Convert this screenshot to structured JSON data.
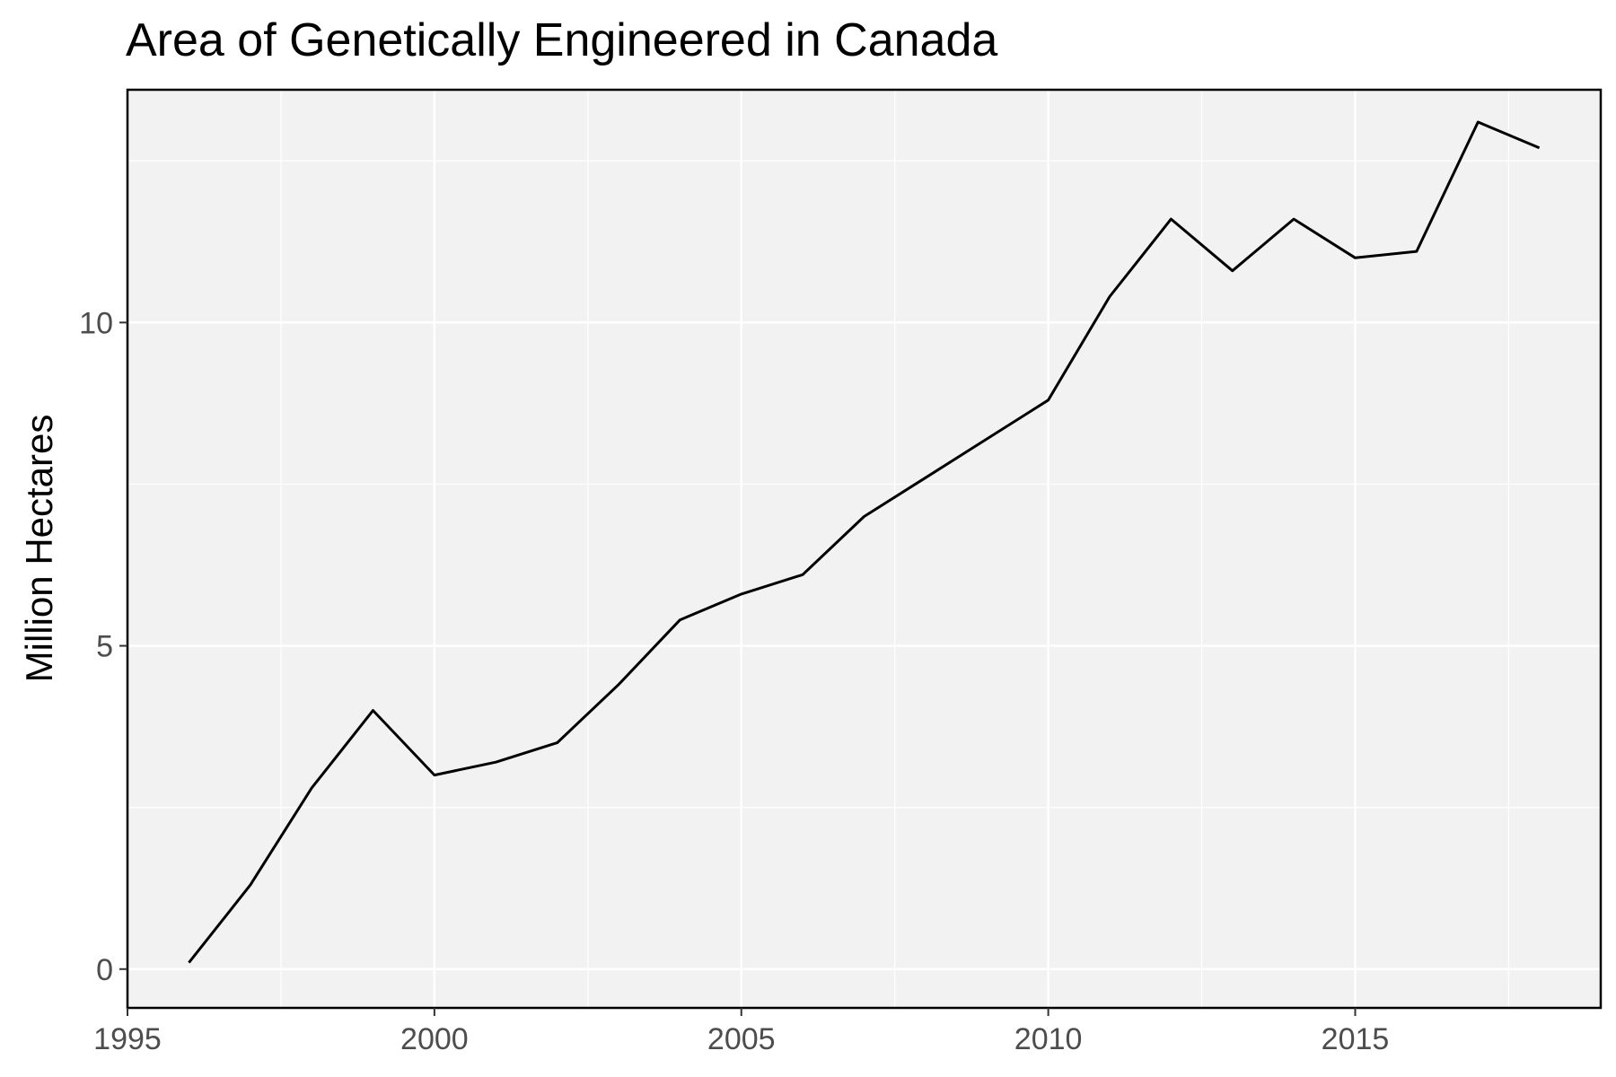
{
  "chart_data": {
    "type": "line",
    "title": "Area of Genetically Engineered in Canada",
    "xlabel": "",
    "ylabel": "Million Hectares",
    "xlim": [
      1995,
      2019
    ],
    "ylim": [
      -0.6,
      13.6
    ],
    "x_ticks": [
      1995,
      2000,
      2005,
      2010,
      2015
    ],
    "x_tick_labels": [
      "1995",
      "2000",
      "2005",
      "2010",
      "2015"
    ],
    "y_ticks": [
      0,
      5,
      10
    ],
    "y_tick_labels": [
      "0",
      "5",
      "10"
    ],
    "grid": true,
    "legend": "none",
    "background_color": "#f2f2f2",
    "grid_color": "#ffffff",
    "line_color": "#000000",
    "series": [
      {
        "x": [
          1996,
          1997,
          1998,
          1999,
          2000,
          2001,
          2002,
          2003,
          2004,
          2005,
          2006,
          2007,
          2008,
          2009,
          2010,
          2011,
          2012,
          2013,
          2014,
          2015,
          2016,
          2017,
          2018
        ],
        "values": [
          0.1,
          1.3,
          2.8,
          4.0,
          3.0,
          3.2,
          3.5,
          4.4,
          5.4,
          5.8,
          6.1,
          7.0,
          7.6,
          8.2,
          8.8,
          10.4,
          11.6,
          10.8,
          11.6,
          11.0,
          11.1,
          13.1,
          12.7
        ]
      }
    ]
  }
}
